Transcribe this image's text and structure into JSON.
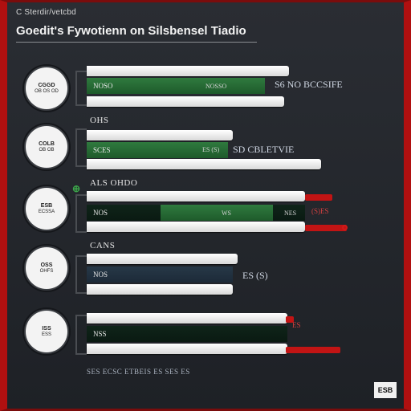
{
  "header": {
    "kicker": "C Sterdir/vetcbd",
    "title": "Goedit's Fywotienn on Silsbensel Tiadio"
  },
  "rows": [
    {
      "badge_line1": "CGGD",
      "badge_line2": "OB OS OD",
      "label": "",
      "bar_left": "NOSO",
      "bar_mid": "NOSSO",
      "value": "S6  NO  BCCSIFE",
      "fill_fraction": 0.64
    },
    {
      "badge_line1": "COLB",
      "badge_line2": "OB OB",
      "label": "OHS",
      "bar_left": "SCES",
      "bar_mid": "ES (S)",
      "value": "SD CBLETVIE",
      "fill_fraction": 0.7
    },
    {
      "badge_line1": "ESB",
      "badge_line2": "ECSSA",
      "label": "ALS OHDO",
      "bar_left": "NOS",
      "bar_mid": "WS",
      "value": "NES",
      "red_value": "(S)ES",
      "fill_fraction": 0.78
    },
    {
      "badge_line1": "OSS",
      "badge_line2": "OHFS",
      "label": "CANS",
      "bar_left": "NOS",
      "bar_mid": "",
      "value": "ES (S)",
      "fill_fraction": 0.86
    },
    {
      "badge_line1": "ISS",
      "badge_line2": "ESS",
      "label": "",
      "bar_left": "NSS",
      "bar_mid": "",
      "value": "",
      "red_value": "ES",
      "fill_fraction": 0.95
    }
  ],
  "footer": {
    "note": "SES  ECSC  ETBEIS  ES  SES  ES",
    "logo": "ESB"
  }
}
